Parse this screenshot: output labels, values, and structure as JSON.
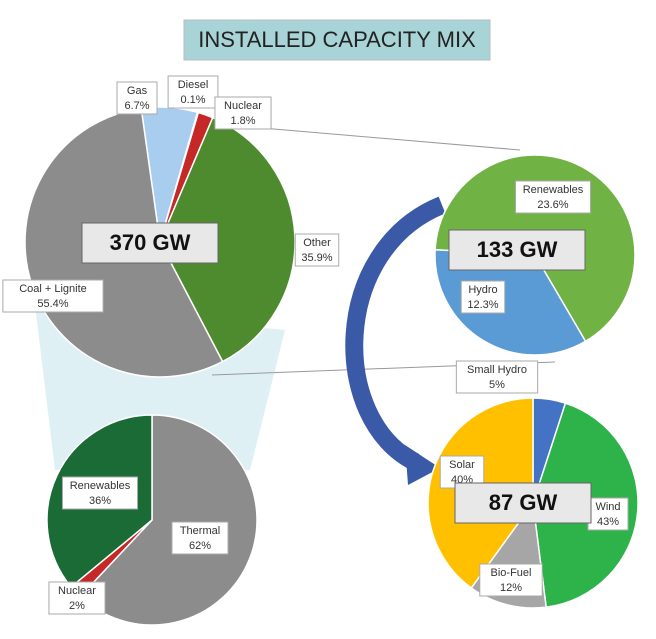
{
  "title": "INSTALLED CAPACITY MIX",
  "chart_data": [
    {
      "type": "pie",
      "center_label": "370 GW",
      "categories": [
        "Gas",
        "Diesel",
        "Nuclear",
        "Other",
        "Coal + Lignite"
      ],
      "values": [
        6.7,
        0.1,
        1.8,
        35.9,
        55.4
      ],
      "value_labels": [
        "6.7%",
        "0.1%",
        "1.8%",
        "35.9%",
        "55.4%"
      ],
      "colors": [
        "#a9cdee",
        "#7fb3e0",
        "#c62828",
        "#4e8a2e",
        "#8c8c8c"
      ]
    },
    {
      "type": "pie",
      "center_label": "133 GW",
      "categories": [
        "Renewables",
        "Hydro"
      ],
      "values": [
        23.6,
        12.3
      ],
      "value_labels": [
        "23.6%",
        "12.3%"
      ],
      "colors": [
        "#70b244",
        "#5b9bd5"
      ]
    },
    {
      "type": "pie",
      "categories": [
        "Thermal",
        "Nuclear",
        "Renewables"
      ],
      "values": [
        62,
        2,
        36
      ],
      "value_labels": [
        "62%",
        "2%",
        "36%"
      ],
      "colors": [
        "#8c8c8c",
        "#c62828",
        "#1a6b36"
      ]
    },
    {
      "type": "pie",
      "center_label": "87 GW",
      "categories": [
        "Small Hydro",
        "Wind",
        "Bio-Fuel",
        "Solar"
      ],
      "values": [
        5,
        43,
        12,
        40
      ],
      "value_labels": [
        "5%",
        "43%",
        "12%",
        "40%"
      ],
      "colors": [
        "#4472c4",
        "#2db34a",
        "#a6a6a6",
        "#ffc000"
      ]
    }
  ]
}
